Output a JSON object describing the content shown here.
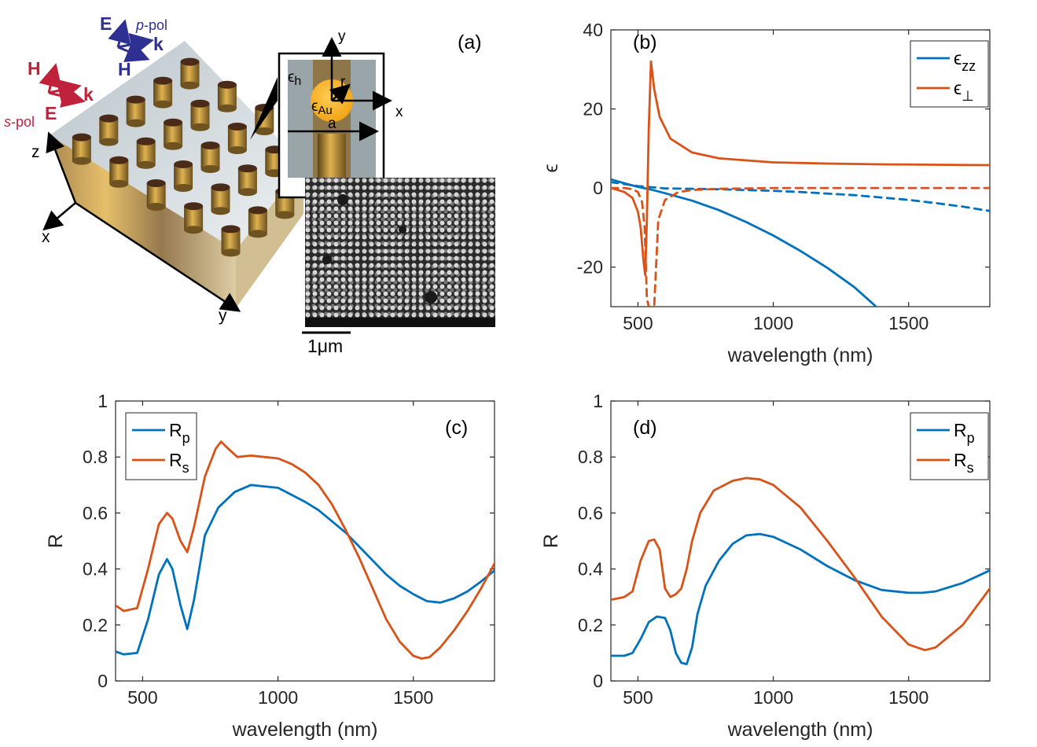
{
  "colors": {
    "blue": "#0072BD",
    "orange": "#D95319",
    "axis": "#262626"
  },
  "panel_a": {
    "label": "(a)",
    "ppol": {
      "E": "E",
      "k": "k",
      "H": "H",
      "pol_prefix": "p",
      "pol_suffix": "-pol"
    },
    "spol": {
      "H": "H",
      "k": "k",
      "E": "E",
      "pol_prefix": "s",
      "pol_suffix": "-pol"
    },
    "axes": {
      "z": "z",
      "x": "x",
      "y": "y"
    },
    "inset": {
      "y": "y",
      "x": "x",
      "eh_sym": "ϵ",
      "eh_sub": "h",
      "eau_sym": "ϵ",
      "eau_sub": "Au",
      "r": "r",
      "a": "a"
    },
    "scalebar": "1μm"
  },
  "chart_data": [
    {
      "id": "b",
      "type": "line",
      "panel_label": "(b)",
      "xlabel": "wavelength (nm)",
      "ylabel": "ϵ",
      "xlim": [
        400,
        1800
      ],
      "ylim": [
        -30,
        40
      ],
      "xticks": [
        500,
        1000,
        1500
      ],
      "yticks": [
        -20,
        0,
        20,
        40
      ],
      "legend": [
        "ϵ_zz",
        "ϵ_⊥"
      ],
      "series": [
        {
          "name": "ϵ_zz (solid)",
          "color": "#0072BD",
          "dash": false,
          "x": [
            400,
            450,
            500,
            550,
            600,
            700,
            800,
            900,
            1000,
            1100,
            1200,
            1300,
            1380
          ],
          "y": [
            2.2,
            1.2,
            0.3,
            -0.4,
            -1.3,
            -3.2,
            -5.6,
            -8.6,
            -12.0,
            -15.9,
            -20.2,
            -25.1,
            -30
          ]
        },
        {
          "name": "ϵ_zz imag (dashed)",
          "color": "#0072BD",
          "dash": true,
          "x": [
            400,
            500,
            600,
            700,
            800,
            900,
            1000,
            1100,
            1200,
            1300,
            1400,
            1500,
            1600,
            1700,
            1800
          ],
          "y": [
            1.5,
            0.5,
            -0.1,
            -0.2,
            -0.3,
            -0.5,
            -0.7,
            -1.0,
            -1.4,
            -1.8,
            -2.4,
            -3.0,
            -3.8,
            -4.7,
            -5.8
          ]
        },
        {
          "name": "ϵ_⊥ (solid)",
          "color": "#D95319",
          "dash": false,
          "x": [
            400,
            450,
            480,
            500,
            510,
            520,
            527,
            533,
            540,
            548,
            560,
            580,
            620,
            700,
            800,
            1000,
            1200,
            1400,
            1600,
            1800
          ],
          "y": [
            0,
            -1,
            -2.5,
            -6,
            -10,
            -18,
            -22,
            -8,
            15,
            32,
            25,
            18,
            12.5,
            9,
            7.5,
            6.5,
            6.2,
            6.0,
            5.9,
            5.8
          ]
        },
        {
          "name": "ϵ_⊥ imag (dashed)",
          "color": "#D95319",
          "dash": true,
          "x": [
            400,
            450,
            480,
            500,
            515,
            525,
            533,
            540,
            550,
            560,
            575,
            600,
            650,
            700,
            800,
            1000,
            1400,
            1800
          ],
          "y": [
            0,
            0,
            -0.3,
            -1.0,
            -3.5,
            -10,
            -28,
            -30,
            -30,
            -30,
            -8,
            -3,
            -1,
            -0.5,
            -0.2,
            0,
            0,
            0
          ]
        }
      ]
    },
    {
      "id": "c",
      "type": "line",
      "panel_label": "(c)",
      "xlabel": "wavelength (nm)",
      "ylabel": "R",
      "xlim": [
        400,
        1800
      ],
      "ylim": [
        0,
        1
      ],
      "xticks": [
        500,
        1000,
        1500
      ],
      "yticks": [
        0,
        0.2,
        0.4,
        0.6,
        0.8,
        1
      ],
      "legend": [
        "R_p",
        "R_s"
      ],
      "series": [
        {
          "name": "R_p",
          "color": "#0072BD",
          "x": [
            400,
            430,
            480,
            520,
            560,
            590,
            610,
            640,
            665,
            690,
            730,
            780,
            840,
            900,
            950,
            1000,
            1050,
            1100,
            1150,
            1200,
            1250,
            1300,
            1350,
            1400,
            1450,
            1500,
            1550,
            1600,
            1650,
            1700,
            1750,
            1800
          ],
          "y": [
            0.105,
            0.095,
            0.1,
            0.22,
            0.38,
            0.435,
            0.4,
            0.27,
            0.185,
            0.29,
            0.52,
            0.62,
            0.675,
            0.7,
            0.695,
            0.69,
            0.665,
            0.64,
            0.61,
            0.57,
            0.53,
            0.48,
            0.43,
            0.38,
            0.34,
            0.31,
            0.285,
            0.28,
            0.295,
            0.32,
            0.355,
            0.395
          ]
        },
        {
          "name": "R_s",
          "color": "#D95319",
          "x": [
            400,
            430,
            480,
            520,
            560,
            590,
            610,
            640,
            665,
            690,
            730,
            770,
            790,
            810,
            850,
            900,
            950,
            1000,
            1050,
            1100,
            1150,
            1200,
            1250,
            1300,
            1350,
            1400,
            1450,
            1500,
            1530,
            1560,
            1600,
            1650,
            1700,
            1750,
            1800
          ],
          "y": [
            0.27,
            0.25,
            0.26,
            0.4,
            0.56,
            0.6,
            0.58,
            0.5,
            0.46,
            0.55,
            0.73,
            0.83,
            0.855,
            0.835,
            0.8,
            0.805,
            0.8,
            0.795,
            0.775,
            0.745,
            0.7,
            0.63,
            0.54,
            0.44,
            0.33,
            0.22,
            0.14,
            0.09,
            0.08,
            0.085,
            0.12,
            0.18,
            0.25,
            0.33,
            0.42
          ]
        }
      ]
    },
    {
      "id": "d",
      "type": "line",
      "panel_label": "(d)",
      "xlabel": "wavelength (nm)",
      "ylabel": "R",
      "xlim": [
        400,
        1800
      ],
      "ylim": [
        0,
        1
      ],
      "xticks": [
        500,
        1000,
        1500
      ],
      "yticks": [
        0,
        0.2,
        0.4,
        0.6,
        0.8,
        1
      ],
      "legend": [
        "R_p",
        "R_s"
      ],
      "series": [
        {
          "name": "R_p",
          "color": "#0072BD",
          "x": [
            400,
            450,
            480,
            510,
            540,
            570,
            600,
            620,
            640,
            660,
            680,
            700,
            720,
            750,
            800,
            850,
            900,
            950,
            1000,
            1100,
            1200,
            1300,
            1400,
            1500,
            1550,
            1600,
            1700,
            1800
          ],
          "y": [
            0.09,
            0.09,
            0.1,
            0.15,
            0.21,
            0.23,
            0.225,
            0.18,
            0.1,
            0.065,
            0.06,
            0.12,
            0.24,
            0.34,
            0.43,
            0.49,
            0.52,
            0.525,
            0.515,
            0.47,
            0.41,
            0.36,
            0.325,
            0.315,
            0.315,
            0.32,
            0.35,
            0.395
          ]
        },
        {
          "name": "R_s",
          "color": "#D95319",
          "x": [
            400,
            450,
            480,
            510,
            540,
            560,
            580,
            600,
            620,
            640,
            660,
            680,
            700,
            730,
            780,
            850,
            900,
            950,
            1000,
            1100,
            1200,
            1300,
            1400,
            1500,
            1560,
            1600,
            1700,
            1800
          ],
          "y": [
            0.29,
            0.3,
            0.32,
            0.43,
            0.5,
            0.505,
            0.47,
            0.33,
            0.3,
            0.31,
            0.33,
            0.4,
            0.5,
            0.6,
            0.68,
            0.715,
            0.725,
            0.72,
            0.7,
            0.62,
            0.5,
            0.37,
            0.23,
            0.13,
            0.11,
            0.12,
            0.2,
            0.33
          ]
        }
      ]
    }
  ]
}
